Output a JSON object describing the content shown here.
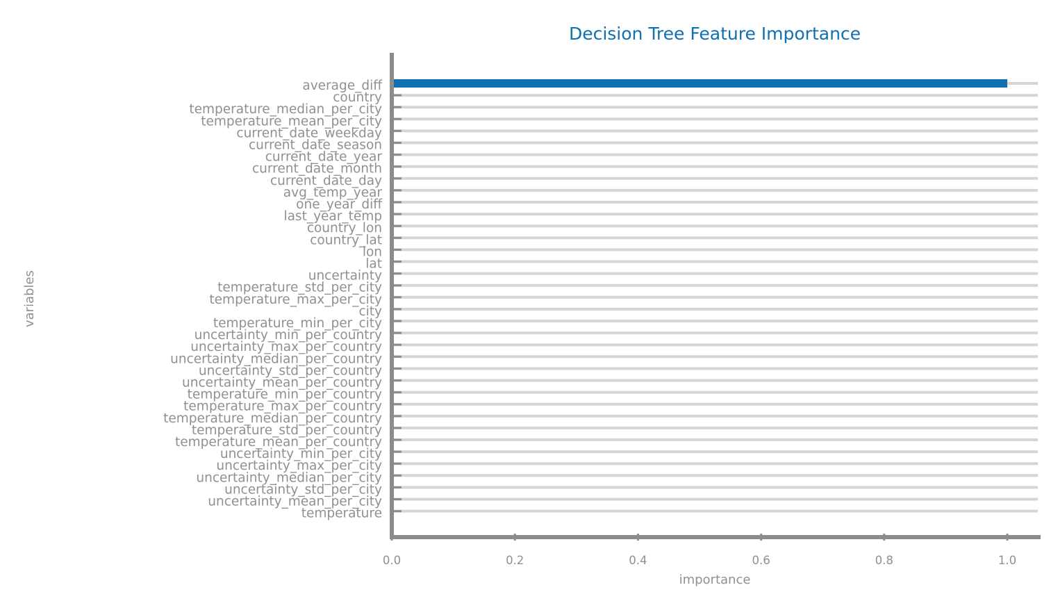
{
  "chart_data": {
    "type": "bar",
    "orientation": "horizontal",
    "title": "Decision Tree Feature Importance",
    "xlabel": "importance",
    "ylabel": "variables",
    "xlim": [
      0,
      1.05
    ],
    "xticks": [
      "0.0",
      "0.2",
      "0.4",
      "0.6",
      "0.8",
      "1.0"
    ],
    "grid": true,
    "colors": {
      "bar": "#1070b0",
      "title": "#1070b0",
      "text": "#909090",
      "axis": "#8c8c8c",
      "grid": "#d6d6d6"
    },
    "categories": [
      "average_diff",
      "country",
      "temperature_median_per_city",
      "temperature_mean_per_city",
      "current_date_weekday",
      "current_date_season",
      "current_date_year",
      "current_date_month",
      "current_date_day",
      "avg_temp_year",
      "one_year_diff",
      "last_year_temp",
      "country_lon",
      "country_lat",
      "lon",
      "lat",
      "uncertainty",
      "temperature_std_per_city",
      "temperature_max_per_city",
      "city",
      "temperature_min_per_city",
      "uncertainty_min_per_country",
      "uncertainty_max_per_country",
      "uncertainty_median_per_country",
      "uncertainty_std_per_country",
      "uncertainty_mean_per_country",
      "temperature_min_per_country",
      "temperature_max_per_country",
      "temperature_median_per_country",
      "temperature_std_per_country",
      "temperature_mean_per_country",
      "uncertainty_min_per_city",
      "uncertainty_max_per_city",
      "uncertainty_median_per_city",
      "uncertainty_std_per_city",
      "uncertainty_mean_per_city",
      "temperature"
    ],
    "values": [
      1.0,
      0,
      0,
      0,
      0,
      0,
      0,
      0,
      0,
      0,
      0,
      0,
      0,
      0,
      0,
      0,
      0,
      0,
      0,
      0,
      0,
      0,
      0,
      0,
      0,
      0,
      0,
      0,
      0,
      0,
      0,
      0,
      0,
      0,
      0,
      0,
      0
    ]
  }
}
